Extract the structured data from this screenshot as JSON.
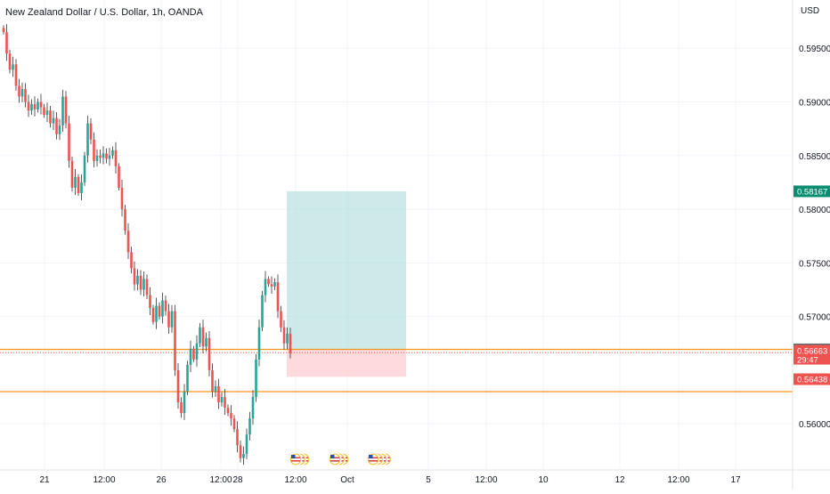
{
  "header": {
    "title": "New Zealand Dollar / U.S. Dollar, 1h, OANDA",
    "currency": "USD"
  },
  "colors": {
    "up": "#26a69a",
    "down": "#ef5350",
    "wick": "#333333",
    "level_line": "#f7931a",
    "profit_zone": "#b2dfdb",
    "loss_zone": "#ffcdd2",
    "target_badge": "#088f72",
    "price_badge": "#ef5350",
    "entry_badge": "#6b6b6b",
    "grid": "#f0f3fa",
    "axis_text": "#131722"
  },
  "chart_data": {
    "type": "candlestick",
    "title": "New Zealand Dollar / U.S. Dollar, 1h, OANDA",
    "ylabel": "USD",
    "ylim": [
      0.5557,
      0.5995
    ],
    "y_ticks": [
      "0.59500",
      "0.59000",
      "0.58500",
      "0.58000",
      "0.57500",
      "0.57000",
      "0.56000"
    ],
    "x_ticks": [
      "21",
      "12:00",
      "26",
      "12:00",
      "28",
      "12:00",
      "Oct",
      "5",
      "12:00",
      "10",
      "12",
      "12:00",
      "17"
    ],
    "close_path": [
      0.5965,
      0.5945,
      0.593,
      0.5935,
      0.5915,
      0.5905,
      0.5912,
      0.59,
      0.5892,
      0.5898,
      0.5893,
      0.59,
      0.5895,
      0.5888,
      0.5892,
      0.588,
      0.5885,
      0.587,
      0.5878,
      0.5905,
      0.588,
      0.5845,
      0.582,
      0.583,
      0.5815,
      0.5825,
      0.585,
      0.588,
      0.5865,
      0.5845,
      0.585,
      0.5848,
      0.5852,
      0.5847,
      0.585,
      0.5855,
      0.584,
      0.582,
      0.58,
      0.578,
      0.576,
      0.5745,
      0.573,
      0.5738,
      0.5725,
      0.5735,
      0.572,
      0.5708,
      0.5695,
      0.571,
      0.57,
      0.5715,
      0.5705,
      0.569,
      0.5705,
      0.565,
      0.562,
      0.561,
      0.563,
      0.5655,
      0.567,
      0.566,
      0.5675,
      0.569,
      0.5672,
      0.568,
      0.565,
      0.563,
      0.5635,
      0.562,
      0.5625,
      0.5615,
      0.561,
      0.5605,
      0.5595,
      0.558,
      0.5568,
      0.5572,
      0.559,
      0.5605,
      0.5625,
      0.566,
      0.569,
      0.572,
      0.5735,
      0.573,
      0.5728,
      0.5732,
      0.5705,
      0.569,
      0.5675,
      0.5684,
      0.5666
    ],
    "x_range_days": [
      "20 Sep",
      "18 Oct"
    ],
    "current_price": "0.56663",
    "countdown": "29:47",
    "entry_price": "0.56694",
    "target_price": "0.58167",
    "stop_price": "0.56438",
    "horizontal_levels": [
      0.56694,
      0.563
    ],
    "grid": true
  },
  "events": {
    "group1_count": 3,
    "group2_count": 3,
    "group3_count": 4
  }
}
